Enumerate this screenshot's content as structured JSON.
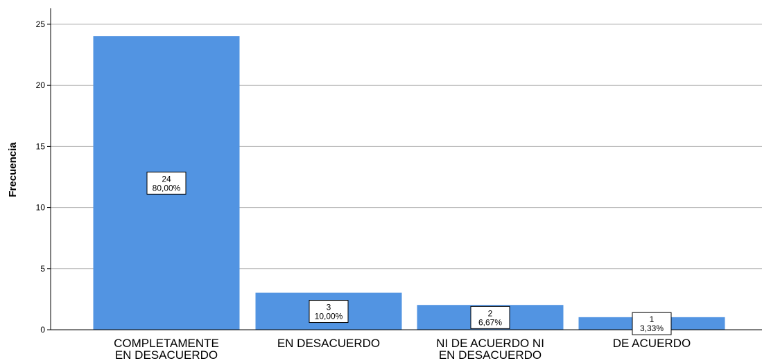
{
  "chart_data": {
    "type": "bar",
    "title": "",
    "xlabel": "",
    "ylabel": "Frecuencia",
    "categories": [
      [
        "COMPLETAMENTE",
        "EN DESACUERDO"
      ],
      [
        "EN DESACUERDO"
      ],
      [
        "NI DE ACUERDO NI",
        "EN DESACUERDO"
      ],
      [
        "DE ACUERDO"
      ]
    ],
    "values": [
      24,
      3,
      2,
      1
    ],
    "percent_labels": [
      "80,00%",
      "10,00%",
      "6,67%",
      "3,33%"
    ],
    "ylim": [
      0,
      25
    ],
    "yticks": [
      0,
      5,
      10,
      15,
      20,
      25
    ],
    "grid": true,
    "legend": "none",
    "bar_color": "#5294e2"
  }
}
